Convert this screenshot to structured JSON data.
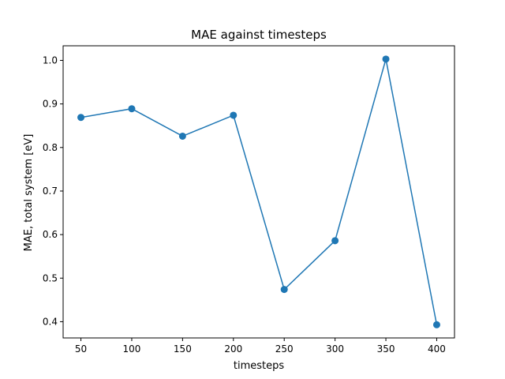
{
  "chart_data": {
    "type": "line",
    "title": "MAE against timesteps",
    "xlabel": "timesteps",
    "ylabel": "MAE, total system [eV]",
    "x": [
      50,
      100,
      150,
      200,
      250,
      300,
      350,
      400
    ],
    "series": [
      {
        "values": [
          0.869,
          0.889,
          0.826,
          0.874,
          0.474,
          0.586,
          1.003,
          0.393
        ]
      }
    ],
    "xlim": [
      32.5,
      417.5
    ],
    "ylim": [
      0.3627,
      1.0335
    ],
    "xticks": [
      50,
      100,
      150,
      200,
      250,
      300,
      350,
      400
    ],
    "xtick_labels": [
      "50",
      "100",
      "150",
      "200",
      "250",
      "300",
      "350",
      "400"
    ],
    "yticks": [
      0.4,
      0.5,
      0.6,
      0.7,
      0.8,
      0.9,
      1.0
    ],
    "ytick_labels": [
      "0.4",
      "0.5",
      "0.6",
      "0.7",
      "0.8",
      "0.9",
      "1.0"
    ],
    "grid": false,
    "colors": {
      "line": "#1f77b4",
      "marker": "#1f77b4"
    }
  }
}
